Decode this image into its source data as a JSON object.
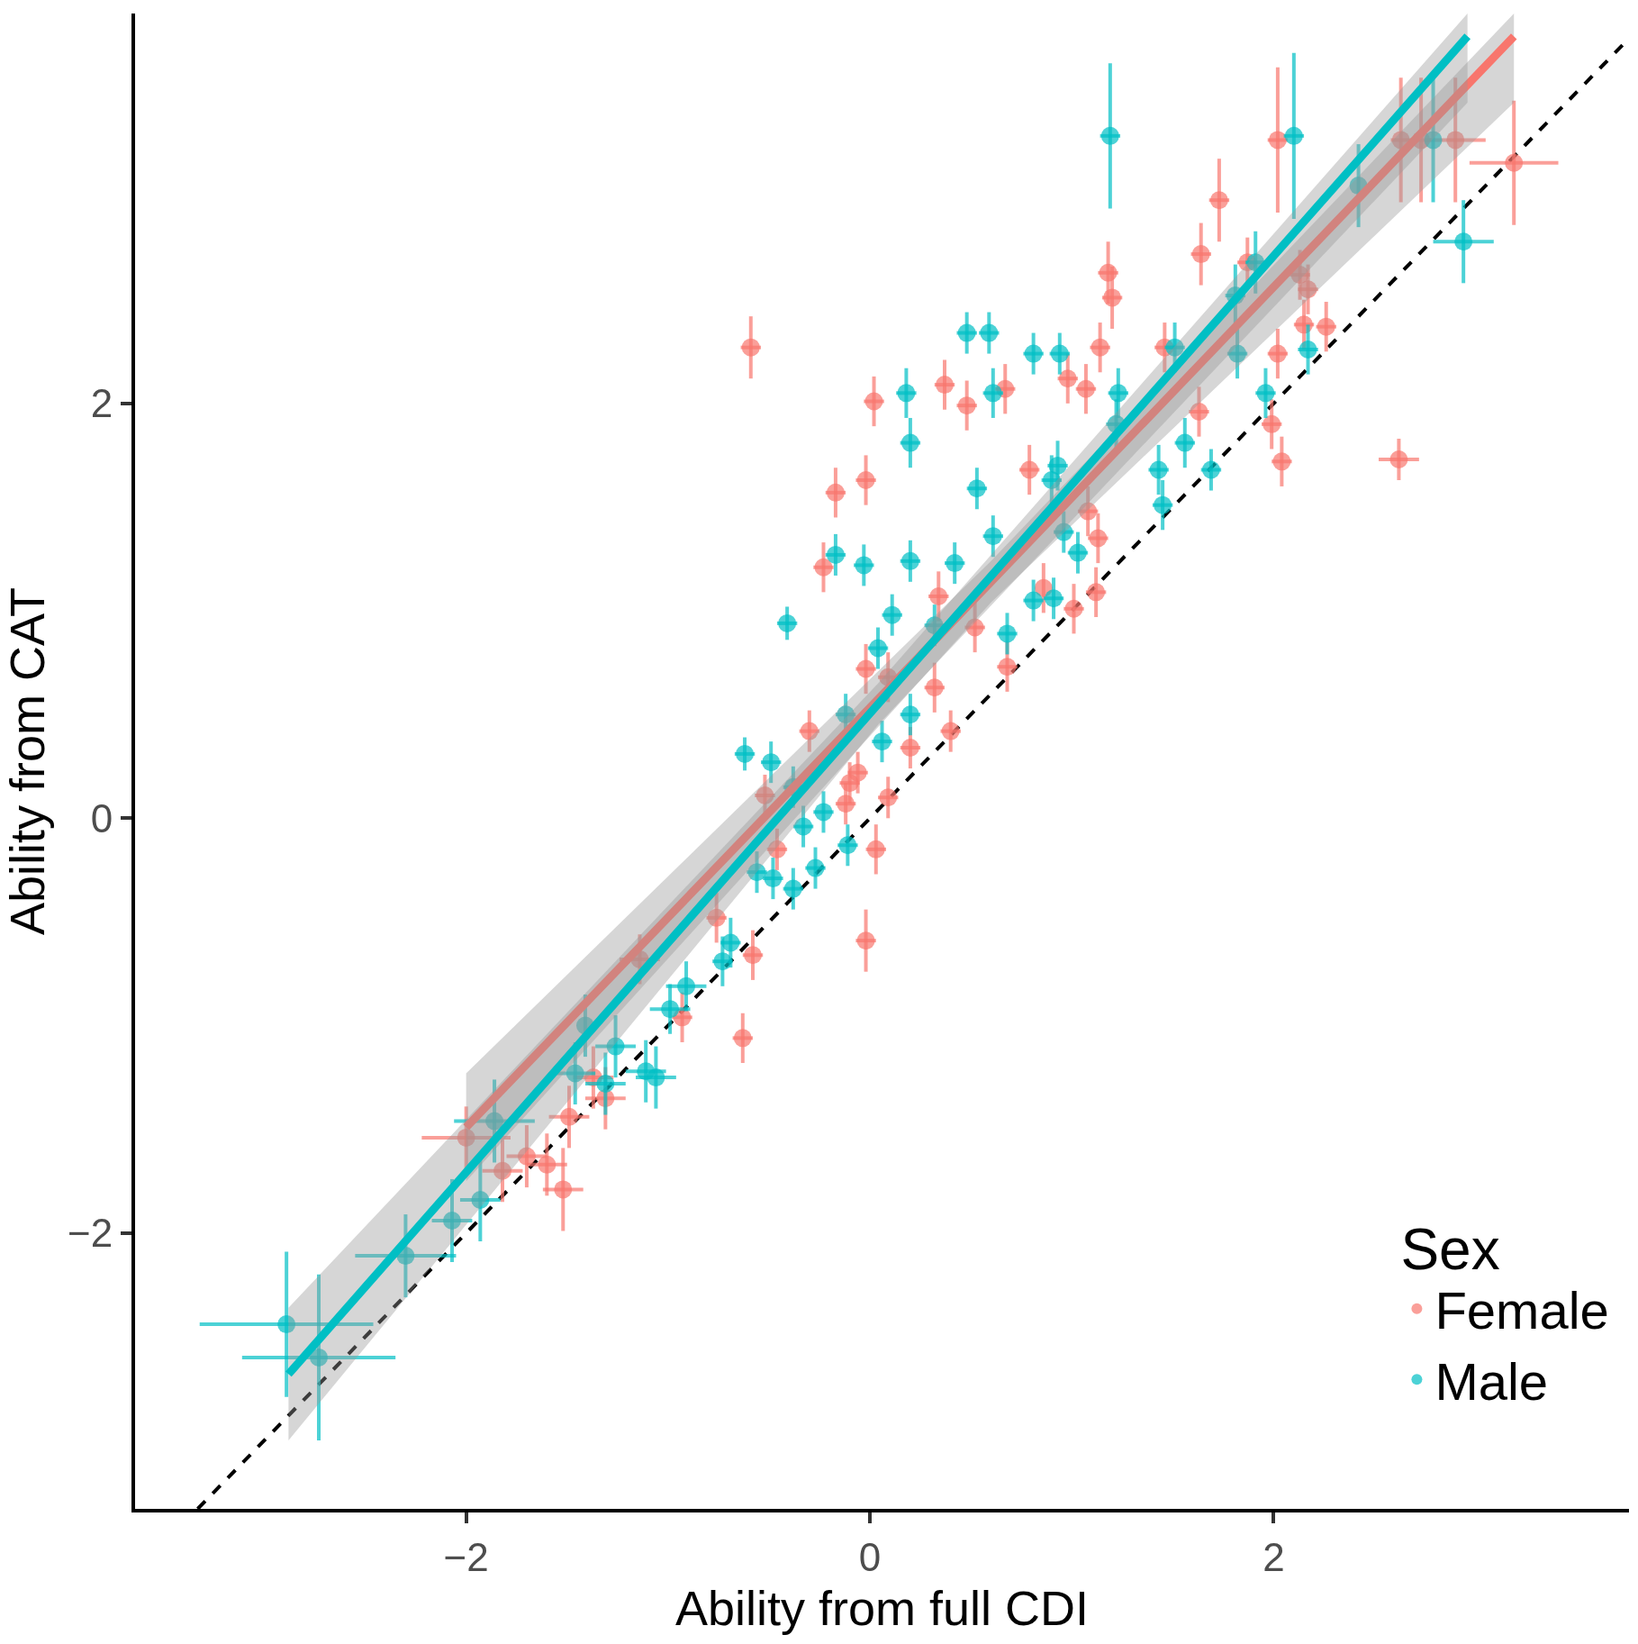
{
  "chart_data": {
    "type": "scatter",
    "xlabel": "Ability from full CDI",
    "ylabel": "Ability from CAT",
    "legend_title": "Sex",
    "legend": "bottom right",
    "marker": "circle",
    "xlim": [
      -3.64,
      3.76
    ],
    "ylim": [
      -3.33,
      3.88
    ],
    "xticks": [
      -2,
      0,
      2
    ],
    "yticks": [
      -2,
      0,
      2
    ],
    "series": [
      {
        "type": "line",
        "marker": "none",
        "color": "#000000",
        "line_style": "dashed",
        "x": [
          -3.33,
          3.76
        ],
        "values": [
          -3.33,
          3.76
        ]
      },
      {
        "name": "Female",
        "color": "#f8766d",
        "x": [
          3.19,
          2.73,
          2.63,
          2.02,
          1.73,
          1.64,
          1.18,
          1.2,
          1.14,
          -0.59,
          0.02,
          0.37,
          0.48,
          0.67,
          0.98,
          1.07,
          -0.02,
          -0.17,
          -0.23,
          0.79,
          1.46,
          1.63,
          2.02,
          1.99,
          2.04,
          2.13,
          2.17,
          2.15,
          2.26,
          2.62,
          1.87,
          0.34,
          0.52,
          1.08,
          1.13,
          1.12,
          1.01,
          0.86,
          0.68,
          -0.02,
          0.09,
          0.32,
          0.4,
          0.2,
          -0.3,
          -0.1,
          -0.06,
          -0.12,
          0.09,
          0.03,
          -0.52,
          -0.46,
          -0.02,
          -0.58,
          -0.76,
          -0.63,
          -0.93,
          -1.14,
          -1.31,
          -1.37,
          -1.49,
          -1.52,
          -1.6,
          -1.7,
          -1.82,
          -2.0,
          2.9
        ],
        "values": [
          3.16,
          3.27,
          3.27,
          3.27,
          2.98,
          2.72,
          2.63,
          2.51,
          2.27,
          2.27,
          2.01,
          2.09,
          1.99,
          2.07,
          2.12,
          2.07,
          1.63,
          1.57,
          1.21,
          1.68,
          2.27,
          1.96,
          2.24,
          1.9,
          1.72,
          2.62,
          2.55,
          2.38,
          2.37,
          1.73,
          2.68,
          1.07,
          0.92,
          1.48,
          1.35,
          1.09,
          1.01,
          1.11,
          0.73,
          0.72,
          0.68,
          0.63,
          0.42,
          0.34,
          0.42,
          0.17,
          0.22,
          0.07,
          0.1,
          -0.15,
          0.11,
          -0.15,
          -0.59,
          -0.66,
          -0.48,
          -1.06,
          -0.96,
          -0.68,
          -1.35,
          -1.25,
          -1.44,
          -1.79,
          -1.67,
          -1.63,
          -1.7,
          -1.54,
          3.27
        ],
        "errors": [
          0.3,
          0.3,
          0.3,
          0.35,
          0.2,
          0.15,
          0.15,
          0.15,
          0.12,
          0.15,
          0.12,
          0.12,
          0.12,
          0.12,
          0.12,
          0.12,
          0.12,
          0.12,
          0.12,
          0.12,
          0.12,
          0.12,
          0.12,
          0.12,
          0.12,
          0.12,
          0.12,
          0.12,
          0.12,
          0.1,
          0.12,
          0.12,
          0.12,
          0.12,
          0.12,
          0.12,
          0.12,
          0.12,
          0.12,
          0.12,
          0.12,
          0.12,
          0.1,
          0.1,
          0.1,
          0.1,
          0.1,
          0.1,
          0.1,
          0.12,
          0.1,
          0.1,
          0.15,
          0.12,
          0.12,
          0.12,
          0.12,
          0.12,
          0.15,
          0.15,
          0.15,
          0.2,
          0.15,
          0.15,
          0.15,
          0.15,
          0.3
        ],
        "xerrors": [
          0.22,
          0.05,
          0.05,
          0.05,
          0.05,
          0.05,
          0.05,
          0.05,
          0.05,
          0.05,
          0.05,
          0.05,
          0.05,
          0.05,
          0.05,
          0.05,
          0.05,
          0.05,
          0.05,
          0.05,
          0.05,
          0.05,
          0.05,
          0.05,
          0.05,
          0.05,
          0.05,
          0.05,
          0.05,
          0.1,
          0.05,
          0.05,
          0.05,
          0.05,
          0.05,
          0.05,
          0.05,
          null,
          0.05,
          0.05,
          0.05,
          0.05,
          0.05,
          0.05,
          0.05,
          0.05,
          0.05,
          0.05,
          0.05,
          0.05,
          0.05,
          0.05,
          0.05,
          0.05,
          0.05,
          0.05,
          0.05,
          0.1,
          0.1,
          0.1,
          0.1,
          0.1,
          0.1,
          0.1,
          0.1,
          0.22,
          0.15
        ]
      },
      {
        "name": "Male",
        "color": "#00bfc4",
        "x": [
          1.19,
          2.1,
          2.79,
          2.94,
          2.42,
          1.91,
          1.81,
          1.82,
          1.96,
          2.17,
          1.51,
          0.48,
          0.59,
          0.81,
          0.94,
          0.18,
          0.2,
          0.61,
          1.23,
          1.22,
          0.53,
          0.93,
          0.9,
          1.43,
          1.45,
          1.69,
          1.56,
          -0.17,
          -0.03,
          0.2,
          0.42,
          0.61,
          1.03,
          0.96,
          -0.41,
          0.11,
          0.04,
          0.32,
          0.68,
          0.81,
          0.91,
          -0.12,
          0.2,
          0.06,
          -0.62,
          -0.49,
          -0.38,
          -0.33,
          -0.23,
          -0.11,
          -0.27,
          -0.38,
          -0.48,
          -0.56,
          -0.69,
          -0.73,
          -0.91,
          -0.99,
          -1.11,
          -1.06,
          -1.26,
          -1.31,
          -1.41,
          -1.46,
          -1.86,
          -1.93,
          -2.07,
          -2.3,
          -2.89,
          -2.73
        ],
        "values": [
          3.29,
          3.29,
          3.27,
          2.78,
          3.05,
          2.68,
          2.52,
          2.24,
          2.05,
          2.26,
          2.27,
          2.34,
          2.34,
          2.24,
          2.24,
          2.05,
          1.81,
          2.05,
          2.05,
          1.9,
          1.59,
          1.7,
          1.63,
          1.68,
          1.51,
          1.68,
          1.81,
          1.27,
          1.22,
          1.24,
          1.23,
          1.36,
          1.28,
          1.38,
          0.94,
          0.98,
          0.82,
          0.93,
          0.89,
          1.05,
          1.06,
          0.5,
          0.5,
          0.37,
          0.31,
          0.27,
          0.15,
          -0.04,
          0.03,
          -0.13,
          -0.24,
          -0.34,
          -0.29,
          -0.26,
          -0.6,
          -0.69,
          -0.81,
          -0.92,
          -1.22,
          -1.25,
          -1.1,
          -1.28,
          -1.0,
          -1.23,
          -1.46,
          -1.84,
          -1.94,
          -2.11,
          -2.44,
          -2.6
        ],
        "errors": [
          0.35,
          0.4,
          0.3,
          0.2,
          0.2,
          0.15,
          0.15,
          0.12,
          0.12,
          0.12,
          0.12,
          0.1,
          0.1,
          0.1,
          0.1,
          0.12,
          0.12,
          0.12,
          0.12,
          0.12,
          0.1,
          0.12,
          0.12,
          0.12,
          0.12,
          0.1,
          0.12,
          0.1,
          0.1,
          0.1,
          0.1,
          0.1,
          0.1,
          0.1,
          0.08,
          0.1,
          0.1,
          0.1,
          0.1,
          0.1,
          0.1,
          0.1,
          0.1,
          0.1,
          0.08,
          0.1,
          0.1,
          0.1,
          0.1,
          0.1,
          0.1,
          0.1,
          0.1,
          0.1,
          0.12,
          0.12,
          0.12,
          0.12,
          0.15,
          0.15,
          0.15,
          0.15,
          0.15,
          0.15,
          0.2,
          0.2,
          0.2,
          0.2,
          0.35,
          0.4
        ],
        "xerrors": [
          0.05,
          0.05,
          null,
          0.15,
          null,
          0.05,
          0.05,
          0.05,
          0.05,
          0.05,
          0.05,
          0.05,
          0.05,
          0.05,
          0.05,
          0.05,
          0.05,
          0.05,
          0.05,
          0.05,
          0.05,
          0.05,
          0.05,
          0.05,
          0.05,
          0.05,
          0.05,
          0.05,
          0.05,
          0.05,
          0.05,
          0.05,
          0.05,
          0.05,
          0.05,
          0.05,
          0.05,
          0.05,
          0.05,
          0.05,
          0.05,
          0.05,
          0.05,
          0.05,
          0.05,
          0.05,
          0.05,
          0.05,
          0.05,
          0.05,
          0.05,
          0.05,
          0.05,
          0.05,
          0.05,
          0.05,
          0.1,
          0.1,
          0.1,
          0.1,
          0.1,
          0.1,
          null,
          0.1,
          0.2,
          0.1,
          0.1,
          0.25,
          0.43,
          0.38
        ]
      },
      {
        "type": "line",
        "marker": "none",
        "color": "#f8766d",
        "x": [
          -2.0,
          0.6,
          3.19
        ],
        "values": [
          -1.49,
          1.14,
          3.77
        ],
        "lower": [
          -1.75,
          1.04,
          3.45
        ],
        "upper": [
          -1.23,
          1.24,
          3.88
        ]
      },
      {
        "type": "line",
        "marker": "none",
        "color": "#00bfc4",
        "x": [
          -2.88,
          0.04,
          2.96
        ],
        "values": [
          -2.68,
          0.55,
          3.77
        ],
        "lower": [
          -3.0,
          0.45,
          3.45
        ],
        "upper": [
          -2.36,
          0.65,
          3.88
        ]
      }
    ]
  }
}
